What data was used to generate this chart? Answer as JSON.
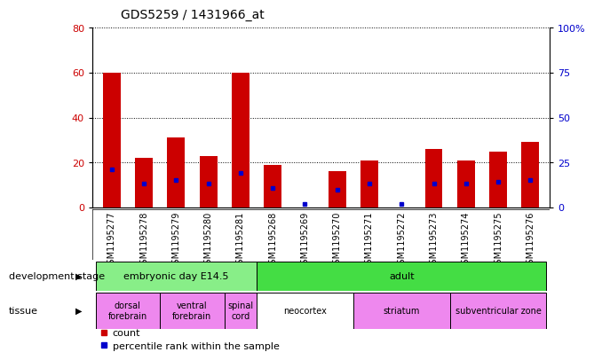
{
  "title": "GDS5259 / 1431966_at",
  "samples": [
    "GSM1195277",
    "GSM1195278",
    "GSM1195279",
    "GSM1195280",
    "GSM1195281",
    "GSM1195268",
    "GSM1195269",
    "GSM1195270",
    "GSM1195271",
    "GSM1195272",
    "GSM1195273",
    "GSM1195274",
    "GSM1195275",
    "GSM1195276"
  ],
  "count_values": [
    60,
    22,
    31,
    23,
    60,
    19,
    0,
    16,
    21,
    0,
    26,
    21,
    25,
    29
  ],
  "percentile_values": [
    21,
    13,
    15,
    13,
    19,
    11,
    2,
    10,
    13,
    2,
    13,
    13,
    14,
    15
  ],
  "count_color": "#cc0000",
  "percentile_color": "#0000cc",
  "ylim_left": [
    0,
    80
  ],
  "ylim_right": [
    0,
    100
  ],
  "yticks_left": [
    0,
    20,
    40,
    60,
    80
  ],
  "yticks_right": [
    0,
    25,
    50,
    75,
    100
  ],
  "ytick_labels_right": [
    "0",
    "25",
    "50",
    "75",
    "100%"
  ],
  "bar_width": 0.55,
  "dev_stage_groups": [
    {
      "label": "embryonic day E14.5",
      "start": 0,
      "end": 4,
      "color": "#88ee88"
    },
    {
      "label": "adult",
      "start": 5,
      "end": 13,
      "color": "#44dd44"
    }
  ],
  "tissue_groups": [
    {
      "label": "dorsal\nforebrain",
      "start": 0,
      "end": 1,
      "color": "#ee88ee"
    },
    {
      "label": "ventral\nforebrain",
      "start": 2,
      "end": 3,
      "color": "#ee88ee"
    },
    {
      "label": "spinal\ncord",
      "start": 4,
      "end": 4,
      "color": "#ee88ee"
    },
    {
      "label": "neocortex",
      "start": 5,
      "end": 7,
      "color": "#ffffff"
    },
    {
      "label": "striatum",
      "start": 8,
      "end": 10,
      "color": "#ee88ee"
    },
    {
      "label": "subventricular zone",
      "start": 11,
      "end": 13,
      "color": "#ee88ee"
    }
  ],
  "legend_count_label": "count",
  "legend_pct_label": "percentile rank within the sample",
  "dev_stage_label": "development stage",
  "tissue_label": "tissue",
  "xticklabel_bg": "#cccccc",
  "grid_color": "#000000",
  "title_fontsize": 10,
  "tick_fontsize": 7,
  "label_fontsize": 8,
  "ann_fontsize": 8
}
